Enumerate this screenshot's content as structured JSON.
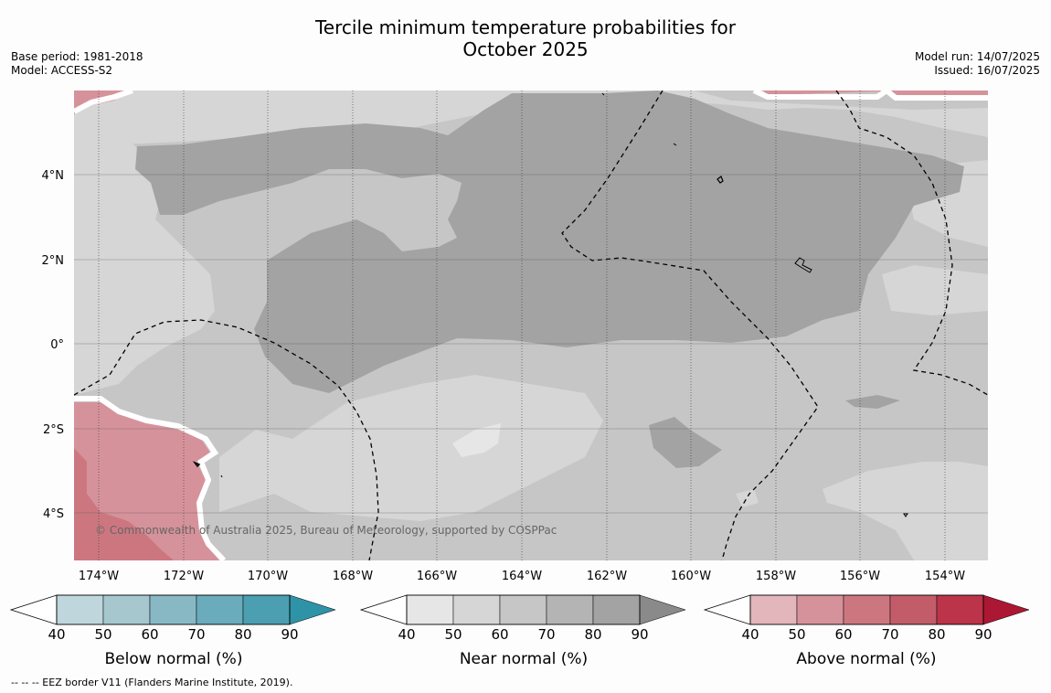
{
  "title_line1": "Tercile minimum temperature probabilities for",
  "title_line2": "October 2025",
  "meta_left": {
    "base_period": "Base period: 1981-2018",
    "model": "Model: ACCESS-S2"
  },
  "meta_right": {
    "model_run": "Model run: 14/07/2025",
    "issued": "Issued: 16/07/2025"
  },
  "map": {
    "lon_labels": [
      "174°W",
      "172°W",
      "170°W",
      "168°W",
      "166°W",
      "164°W",
      "162°W",
      "160°W",
      "158°W",
      "156°W",
      "154°W"
    ],
    "lat_labels": [
      "4°N",
      "2°N",
      "0°",
      "2°S",
      "4°S"
    ],
    "copyright": "© Commonwealth of Australia 2025, Bureau of Meteorology, supported by COSPPac"
  },
  "colorbars": [
    {
      "label": "Below normal (%)",
      "ticks": [
        "40",
        "50",
        "60",
        "70",
        "80",
        "90"
      ],
      "colors": [
        "#bfd6dc",
        "#a6c7ce",
        "#88b8c4",
        "#6aacbb",
        "#4b9fb0",
        "#2f93a8"
      ]
    },
    {
      "label": "Near normal (%)",
      "ticks": [
        "40",
        "50",
        "60",
        "70",
        "80",
        "90"
      ],
      "colors": [
        "#e6e6e6",
        "#d6d6d6",
        "#c6c6c6",
        "#b4b4b4",
        "#a3a3a3",
        "#8a8a8a"
      ]
    },
    {
      "label": "Above normal (%)",
      "ticks": [
        "40",
        "50",
        "60",
        "70",
        "80",
        "90"
      ],
      "colors": [
        "#e3b6bc",
        "#d6929a",
        "#cc7780",
        "#c35c69",
        "#bb3449",
        "#ac1834"
      ]
    }
  ],
  "footnote": "--  --  -- EEZ border V11 (Flanders Marine Institute, 2019)."
}
